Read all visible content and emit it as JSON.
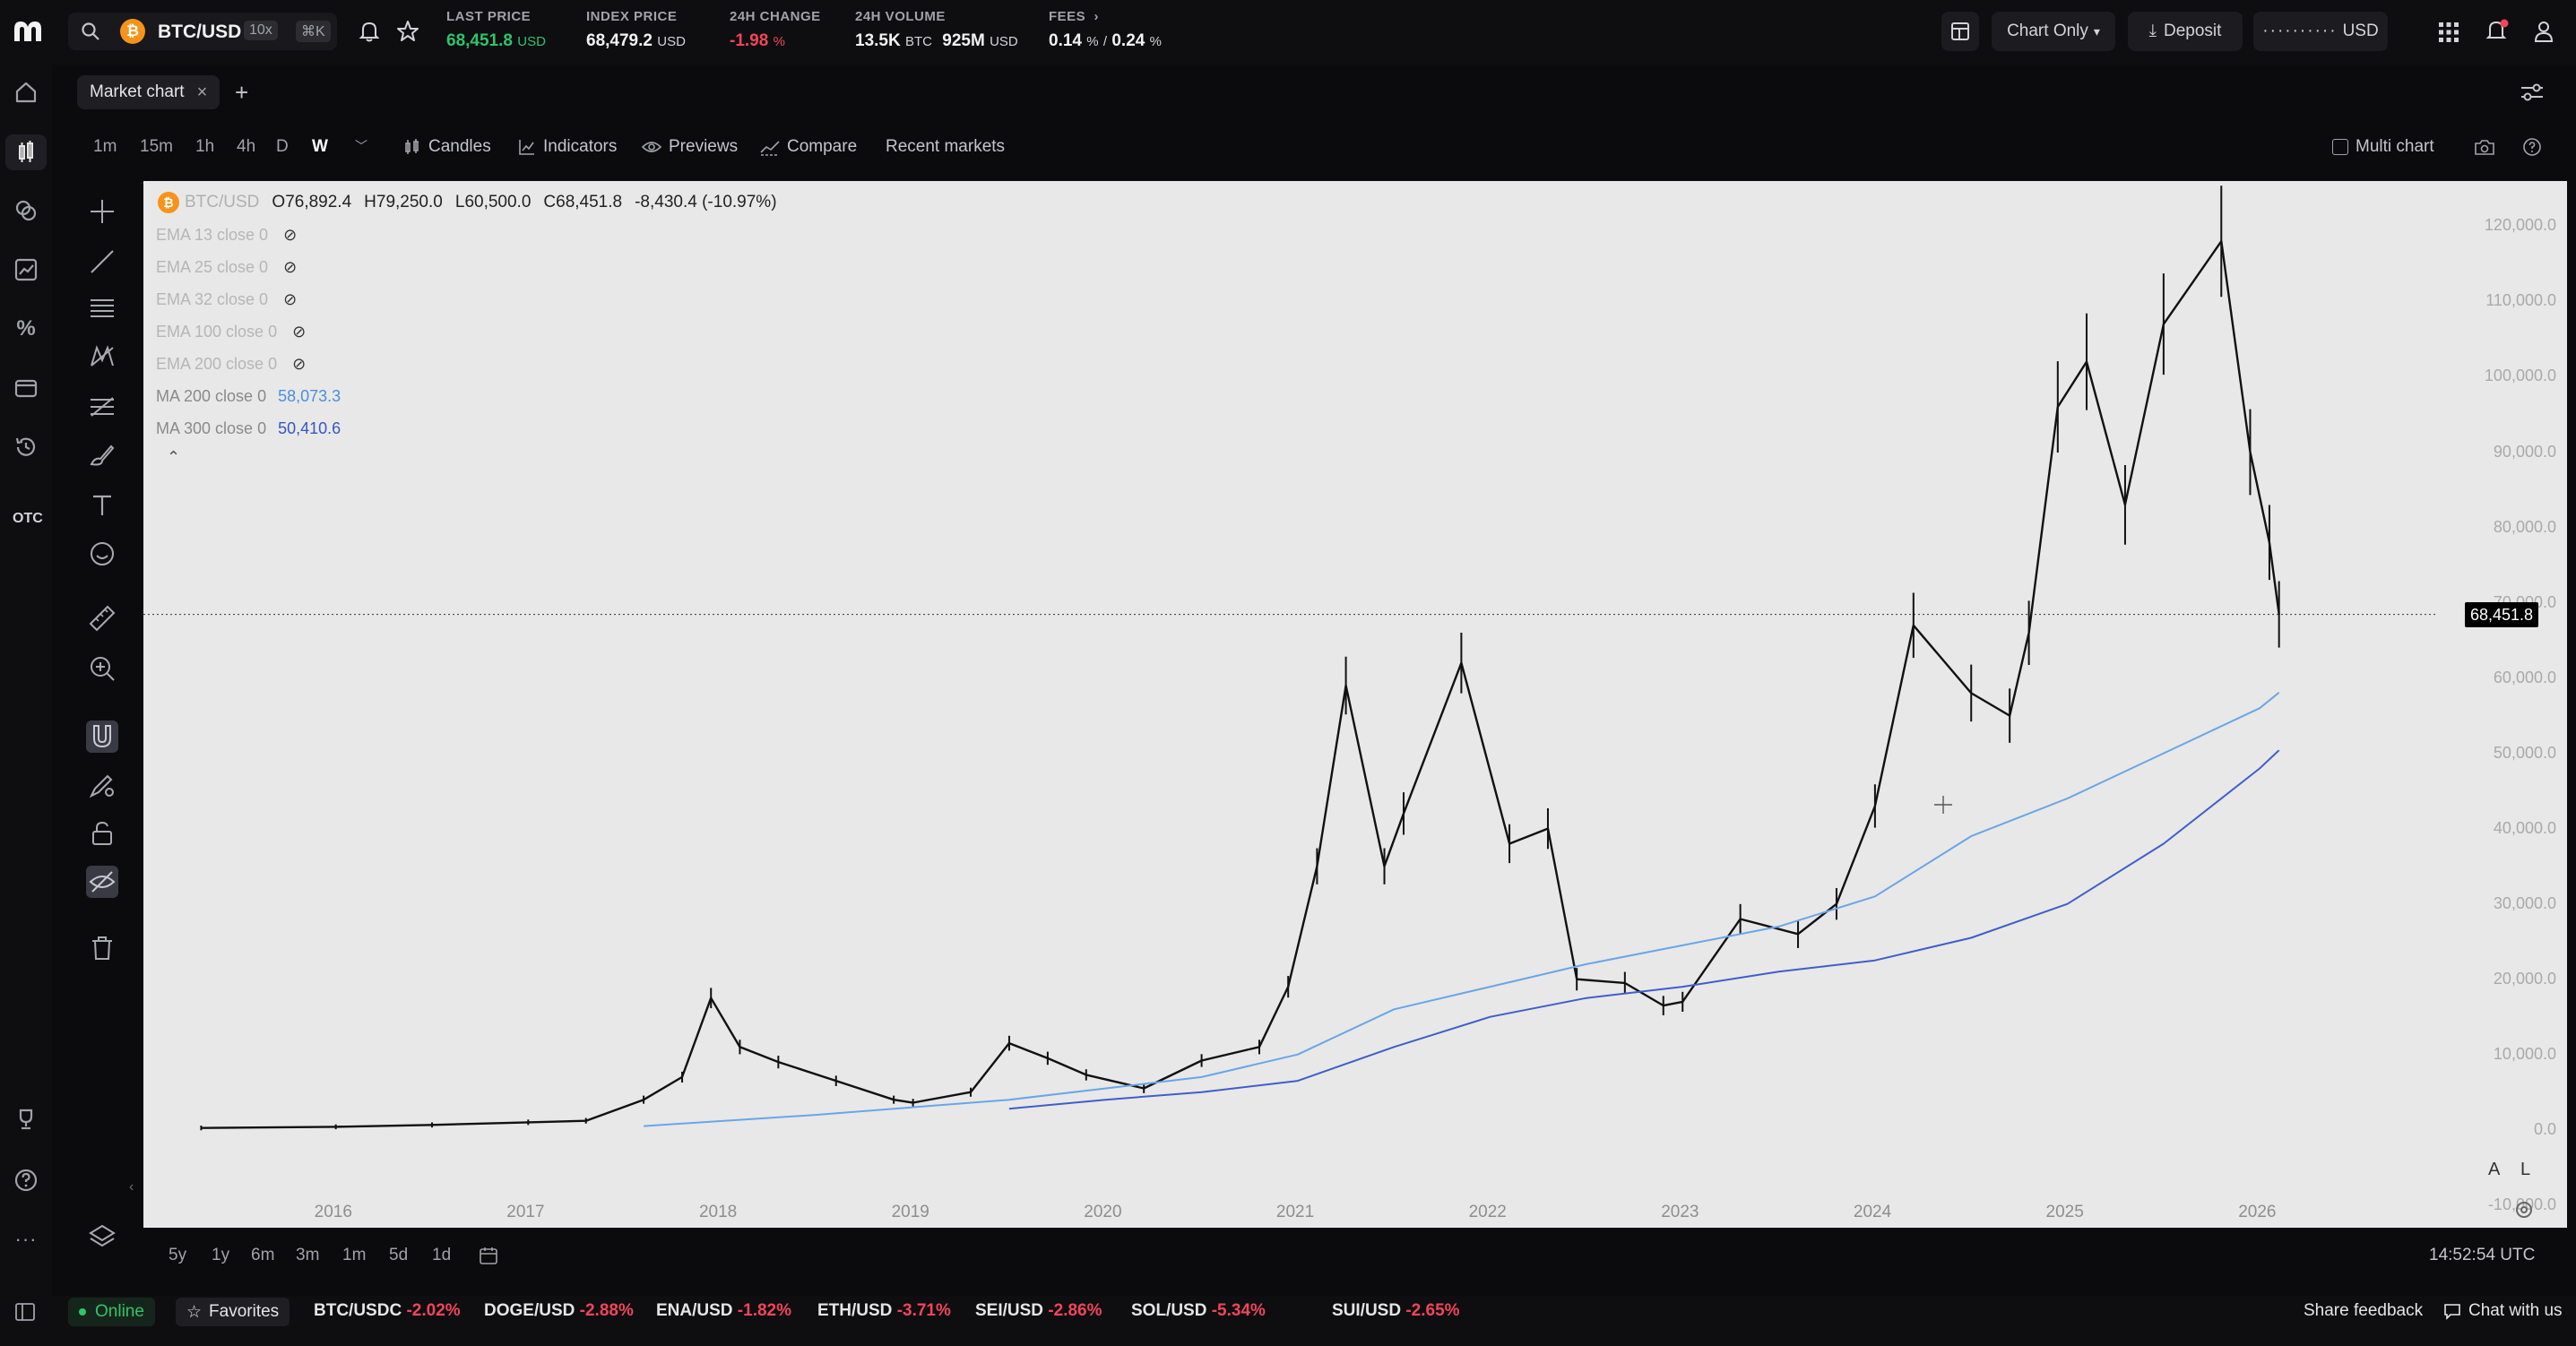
{
  "header": {
    "pair": "BTC/USD",
    "leverage": "10x",
    "shortcut": "⌘K",
    "last_price_label": "LAST PRICE",
    "last_price": "68,451.8",
    "last_price_unit": "USD",
    "index_price_label": "INDEX PRICE",
    "index_price": "68,479.2",
    "index_price_unit": "USD",
    "change_label": "24H CHANGE",
    "change": "-1.98",
    "change_unit": "%",
    "volume_label": "24H VOLUME",
    "volume_btc": "13.5K",
    "volume_btc_unit": "BTC",
    "volume_usd": "925M",
    "volume_usd_unit": "USD",
    "fees_label": "FEES",
    "fee_maker": "0.14",
    "fee_taker": "0.24",
    "fee_sep": "/",
    "fee_unit": "%",
    "chart_mode": "Chart Only",
    "deposit": "Deposit",
    "balance_mask": "··········",
    "balance_currency": "USD"
  },
  "tabs": [
    {
      "label": "Market chart"
    }
  ],
  "timeframes": [
    "1m",
    "15m",
    "1h",
    "4h",
    "D",
    "W"
  ],
  "active_timeframe": "W",
  "toolbar": {
    "candles": "Candles",
    "indicators": "Indicators",
    "previews": "Previews",
    "compare": "Compare",
    "recent": "Recent markets",
    "multi_chart": "Multi chart"
  },
  "left_nav": {
    "otc": "OTC"
  },
  "chart": {
    "symbol": "BTC/USD",
    "ohlc": {
      "o_label": "O",
      "o": "76,892.4",
      "h_label": "H",
      "h": "79,250.0",
      "l_label": "L",
      "l": "60,500.0",
      "c_label": "C",
      "c": "68,451.8",
      "change": "-8,430.4 (-10.97%)"
    },
    "indicators": [
      {
        "name": "EMA 13 close 0",
        "value": "",
        "hidden": true
      },
      {
        "name": "EMA 25 close 0",
        "value": "",
        "hidden": true
      },
      {
        "name": "EMA 32 close 0",
        "value": "",
        "hidden": true
      },
      {
        "name": "EMA 100 close 0",
        "value": "",
        "hidden": true
      },
      {
        "name": "EMA 200 close 0",
        "value": "",
        "hidden": true
      },
      {
        "name": "MA 200 close 0",
        "value": "58,073.3",
        "hidden": false,
        "color": "#6aa6e6"
      },
      {
        "name": "MA 300 close 0",
        "value": "50,410.6",
        "hidden": false,
        "color": "#3f5fc8"
      }
    ],
    "price_tag": "68,451.8",
    "scale_buttons": [
      "A",
      "L"
    ],
    "time": "14:52:54 UTC"
  },
  "chart_data": {
    "type": "line",
    "y_ticks": [
      "120,000.0",
      "110,000.0",
      "100,000.0",
      "90,000.0",
      "80,000.0",
      "70,000.0",
      "60,000.0",
      "50,000.0",
      "40,000.0",
      "30,000.0",
      "20,000.0",
      "10,000.0",
      "0.0",
      "-10,000.0"
    ],
    "x_ticks": [
      "2016",
      "2017",
      "2018",
      "2019",
      "2020",
      "2021",
      "2022",
      "2023",
      "2024",
      "2025",
      "2026"
    ],
    "ylim": [
      -13000,
      126000
    ],
    "series": [
      {
        "name": "BTC/USD",
        "color": "#111111",
        "x": [
          2015.3,
          2016.0,
          2016.5,
          2017.0,
          2017.3,
          2017.6,
          2017.8,
          2017.95,
          2018.1,
          2018.3,
          2018.6,
          2018.9,
          2019.0,
          2019.3,
          2019.5,
          2019.7,
          2019.9,
          2020.2,
          2020.5,
          2020.8,
          2020.95,
          2021.1,
          2021.25,
          2021.45,
          2021.55,
          2021.85,
          2022.1,
          2022.3,
          2022.45,
          2022.7,
          2022.9,
          2023.0,
          2023.3,
          2023.6,
          2023.8,
          2024.0,
          2024.2,
          2024.5,
          2024.7,
          2024.8,
          2024.95,
          2025.1,
          2025.3,
          2025.5,
          2025.8,
          2025.95,
          2026.05,
          2026.1
        ],
        "y": [
          250,
          400,
          650,
          1000,
          1200,
          4000,
          7000,
          17500,
          11000,
          9000,
          6500,
          4000,
          3600,
          5000,
          11500,
          9500,
          7300,
          5500,
          9200,
          11000,
          19000,
          35000,
          59000,
          35000,
          42000,
          62000,
          38000,
          40000,
          20000,
          19500,
          16500,
          17000,
          28000,
          26000,
          30000,
          43000,
          67000,
          58000,
          55000,
          66000,
          96000,
          102000,
          83000,
          107000,
          118000,
          90000,
          78000,
          68451.8
        ]
      },
      {
        "name": "MA 200 close 0",
        "color": "#6aa6e6",
        "x": [
          2017.6,
          2018.5,
          2019.5,
          2020.5,
          2021.0,
          2021.5,
          2022.0,
          2022.5,
          2023.0,
          2023.5,
          2024.0,
          2024.5,
          2025.0,
          2025.5,
          2026.0,
          2026.1
        ],
        "y": [
          500,
          2000,
          4000,
          7000,
          10000,
          16000,
          19000,
          22000,
          24500,
          27000,
          31000,
          39000,
          44000,
          50000,
          56000,
          58073.3
        ]
      },
      {
        "name": "MA 300 close 0",
        "color": "#3f5fc8",
        "x": [
          2019.5,
          2020.0,
          2020.5,
          2021.0,
          2021.5,
          2022.0,
          2022.5,
          2023.0,
          2023.5,
          2024.0,
          2024.5,
          2025.0,
          2025.5,
          2026.0,
          2026.1
        ],
        "y": [
          2800,
          4000,
          5000,
          6500,
          11000,
          15000,
          17500,
          19000,
          21000,
          22500,
          25500,
          30000,
          38000,
          48000,
          50410.6
        ]
      }
    ]
  },
  "ranges": [
    "5y",
    "1y",
    "6m",
    "3m",
    "1m",
    "5d",
    "1d"
  ],
  "status": {
    "online": "Online",
    "favorites": "Favorites",
    "tickers": [
      {
        "sym": "BTC/USDC",
        "chg": "-2.02%"
      },
      {
        "sym": "DOGE/USD",
        "chg": "-2.88%"
      },
      {
        "sym": "ENA/USD",
        "chg": "-1.82%"
      },
      {
        "sym": "ETH/USD",
        "chg": "-3.71%"
      },
      {
        "sym": "SEI/USD",
        "chg": "-2.86%"
      },
      {
        "sym": "SOL/USD",
        "chg": "-5.34%"
      },
      {
        "sym": "SUI/USD",
        "chg": "-2.65%"
      }
    ],
    "feedback": "Share feedback",
    "chat": "Chat with us"
  }
}
